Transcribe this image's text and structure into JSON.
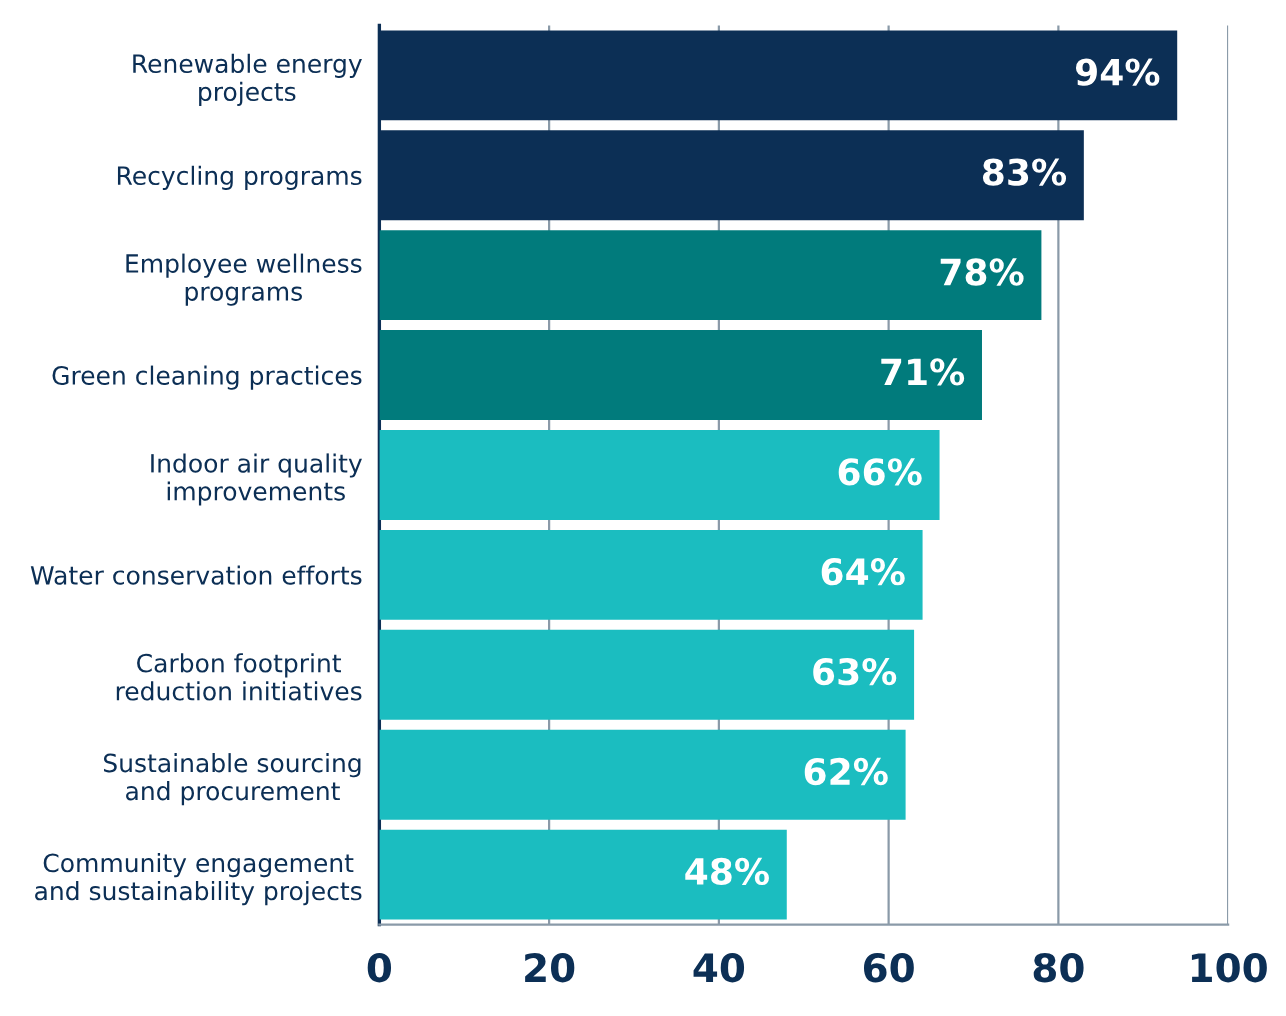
{
  "chart_data": {
    "type": "bar",
    "orientation": "horizontal",
    "categories": [
      "Renewable energy\nprojects",
      "Recycling programs",
      "Employee wellness\nprograms",
      "Green cleaning practices",
      "Indoor air quality\nimprovements",
      "Water conservation efforts",
      "Carbon footprint\nreduction initiatives",
      "Sustainable sourcing\nand procurement",
      "Community engagement\nand sustainability projects"
    ],
    "values": [
      94,
      83,
      78,
      71,
      66,
      64,
      63,
      62,
      48
    ],
    "value_labels": [
      "94%",
      "83%",
      "78%",
      "71%",
      "66%",
      "64%",
      "63%",
      "62%",
      "48%"
    ],
    "colors": [
      "#0c2f55",
      "#0c2f55",
      "#017b7c",
      "#017b7c",
      "#1bbdc0",
      "#1bbdc0",
      "#1bbdc0",
      "#1bbdc0",
      "#1bbdc0"
    ],
    "xlim": [
      0,
      100
    ],
    "xticks": [
      0,
      20,
      40,
      60,
      80,
      100
    ],
    "grid": "x"
  }
}
